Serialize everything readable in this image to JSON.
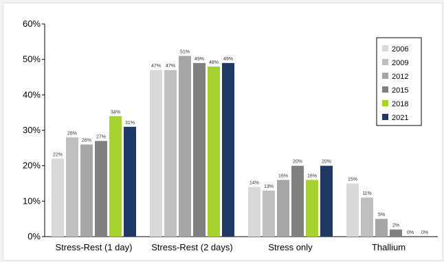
{
  "chart_data": {
    "type": "bar",
    "categories": [
      "Stress-Rest (1 day)",
      "Stress-Rest (2 days)",
      "Stress only",
      "Thallium"
    ],
    "series": [
      {
        "name": "2006",
        "color": "#d9d9d9",
        "values": [
          22,
          47,
          14,
          15
        ],
        "labels": [
          "22%",
          "47%",
          "14%",
          "15%"
        ]
      },
      {
        "name": "2009",
        "color": "#bfbfbf",
        "values": [
          28,
          47,
          13,
          11
        ],
        "labels": [
          "28%",
          "47%",
          "13%",
          "11%"
        ]
      },
      {
        "name": "2012",
        "color": "#a6a6a6",
        "values": [
          26,
          51,
          16,
          5
        ],
        "labels": [
          "26%",
          "51%",
          "16%",
          "5%"
        ]
      },
      {
        "name": "2015",
        "color": "#808080",
        "values": [
          27,
          49,
          20,
          2
        ],
        "labels": [
          "27%",
          "49%",
          "20%",
          "2%"
        ]
      },
      {
        "name": "2018",
        "color": "#a5d22e",
        "values": [
          34,
          48,
          16,
          0
        ],
        "labels": [
          "34%",
          "48%",
          "16%",
          "0%"
        ]
      },
      {
        "name": "2021",
        "color": "#1f3864",
        "values": [
          31,
          49,
          20,
          0
        ],
        "labels": [
          "31%",
          "49%",
          "20%",
          "0%"
        ]
      }
    ],
    "yticks": [
      "0%",
      "10%",
      "20%",
      "30%",
      "40%",
      "50%",
      "60%"
    ],
    "ylim": [
      0,
      60
    ],
    "legend": "top-right",
    "grid": false
  }
}
